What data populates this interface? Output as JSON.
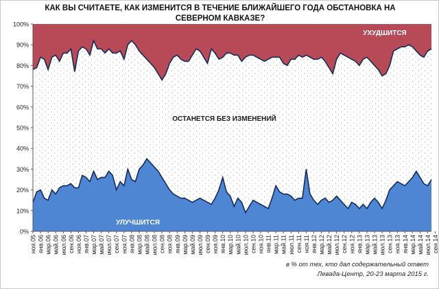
{
  "chart_data": {
    "type": "area",
    "title": "КАК ВЫ СЧИТАЕТЕ, КАК ИЗМЕНИТСЯ В ТЕЧЕНИЕ БЛИЖАЙШЕГО ГОДА ОБСТАНОВКА НА СЕВЕРНОМ КАВКАЗЕ?",
    "stacked_to": 100,
    "ylim": [
      0,
      100
    ],
    "y_ticks": [
      "0%",
      "10%",
      "20%",
      "30%",
      "40%",
      "50%",
      "60%",
      "70%",
      "80%",
      "90%",
      "100%"
    ],
    "x_labels": [
      "ноя.05",
      "янв.06",
      "мар.06",
      "май.06",
      "июл.06",
      "сен.06",
      "ноя.06",
      "янв.07",
      "мар.07",
      "май.07",
      "июл.07",
      "сен.07",
      "ноя.07",
      "янв.08",
      "мар.08",
      "май.08",
      "июл.08",
      "сен.08",
      "ноя.08",
      "янв.09",
      "мар.09",
      "май.09",
      "июл.09",
      "сен.09",
      "ноя.09",
      "янв.10",
      "мар.10",
      "май.10",
      "июл.10",
      "сен.10",
      "ноя.10",
      "янв.11",
      "мар.11",
      "май.11",
      "июл.11",
      "сен.11",
      "ноя.11",
      "янв.12",
      "мар.12",
      "май.12",
      "июл.12",
      "сен.12",
      "ноя.12",
      "янв.13",
      "мар.13",
      "май.13",
      "июл.13",
      "сен.13",
      "ноя.13",
      "янв.14",
      "мар.14",
      "май.14",
      "июл.14",
      "сен.14",
      "ноя.14",
      "янв.15",
      "мар.15"
    ],
    "x_points_per_label": 2,
    "series": [
      {
        "name": "УЛУЧШИТСЯ",
        "color": "#4f86d4",
        "values": [
          14,
          19,
          20,
          16,
          15,
          20,
          18,
          21,
          22,
          22,
          23,
          21,
          21,
          27,
          26,
          24,
          29,
          25,
          26,
          26,
          29,
          27,
          20,
          24,
          22,
          30,
          25,
          24,
          30,
          32,
          35,
          33,
          31,
          29,
          26,
          23,
          20,
          18,
          17,
          16,
          16,
          15,
          14,
          15,
          16,
          15,
          14,
          13,
          16,
          20,
          26,
          19,
          17,
          12,
          16,
          14,
          9,
          12,
          15,
          14,
          13,
          12,
          11,
          16,
          22,
          19,
          18,
          18,
          17,
          15,
          16,
          16,
          30,
          18,
          15,
          13,
          15,
          16,
          14,
          15,
          17,
          15,
          13,
          11,
          14,
          13,
          11,
          13,
          11,
          14,
          16,
          14,
          11,
          15,
          20,
          22,
          24,
          23,
          22,
          24,
          26,
          29,
          26,
          23,
          22,
          25
        ],
        "label_on_chart": "УЛУЧШИТСЯ"
      },
      {
        "name": "ОСТАНЕТСЯ БЕЗ ИЗМЕНЕНИЙ",
        "color": "#ffffff",
        "label_on_chart": "ОСТАНЕТСЯ БЕЗ ИЗМЕНЕНИЙ"
      },
      {
        "name": "УХУДШИТСЯ",
        "color": "#b84a58",
        "values": [
          22,
          21,
          16,
          17,
          22,
          16,
          15,
          18,
          14,
          14,
          12,
          23,
          13,
          11,
          12,
          15,
          8,
          12,
          12,
          14,
          12,
          14,
          14,
          13,
          17,
          10,
          8,
          10,
          13,
          15,
          17,
          19,
          21,
          24,
          27,
          24,
          19,
          16,
          15,
          17,
          18,
          18,
          15,
          12,
          13,
          16,
          19,
          12,
          14,
          17,
          16,
          14,
          14,
          15,
          15,
          18,
          16,
          15,
          15,
          16,
          17,
          18,
          17,
          16,
          16,
          16,
          19,
          20,
          17,
          17,
          15,
          16,
          15,
          16,
          17,
          17,
          16,
          18,
          21,
          24,
          17,
          14,
          15,
          16,
          17,
          18,
          20,
          17,
          16,
          18,
          20,
          22,
          25,
          24,
          20,
          13,
          12,
          11,
          11,
          10,
          11,
          13,
          15,
          16,
          13,
          12
        ],
        "label_on_chart": "УХУДШИТСЯ"
      }
    ],
    "grid": "dotted-fill",
    "legend": "none"
  },
  "footnote": {
    "line1": "в % от тех, кто дал содержательный ответ",
    "line2": "Левада-Центр, 20-23 марта 2015 г."
  },
  "labels": {
    "worse": "УХУДШИТСЯ",
    "same": "ОСТАНЕТСЯ БЕЗ ИЗМЕНЕНИЙ",
    "better": "УЛУЧШИТСЯ"
  }
}
